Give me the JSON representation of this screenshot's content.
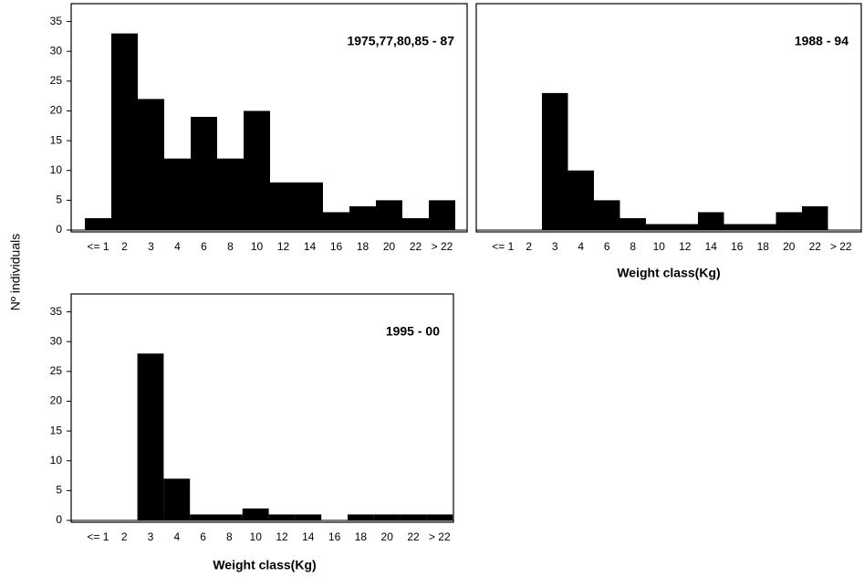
{
  "ylabel": "Nº individuals",
  "chart_data": [
    {
      "type": "bar",
      "title": "1975,77,80,85 - 87",
      "categories": [
        "<= 1",
        "2",
        "3",
        "4",
        "6",
        "8",
        "10",
        "12",
        "14",
        "16",
        "18",
        "20",
        "22",
        "> 22"
      ],
      "values": [
        2,
        33,
        22,
        12,
        19,
        12,
        20,
        8,
        8,
        3,
        4,
        5,
        2,
        5
      ],
      "color": "#000000",
      "ylim": [
        0,
        38
      ],
      "yticks": [
        0,
        5,
        10,
        15,
        20,
        25,
        30,
        35
      ]
    },
    {
      "type": "bar",
      "title": "1988 - 94",
      "xlabel": "Weight class(Kg)",
      "categories": [
        "<= 1",
        "2",
        "3",
        "4",
        "6",
        "8",
        "10",
        "12",
        "14",
        "16",
        "18",
        "20",
        "22",
        "> 22"
      ],
      "values": [
        0,
        0,
        23,
        10,
        5,
        2,
        1,
        1,
        3,
        1,
        1,
        3,
        4,
        0
      ],
      "color": "#000000",
      "ylim": [
        0,
        38
      ]
    },
    {
      "type": "bar",
      "title": "1995 - 00",
      "xlabel": "Weight class(Kg)",
      "categories": [
        "<= 1",
        "2",
        "3",
        "4",
        "6",
        "8",
        "10",
        "12",
        "14",
        "16",
        "18",
        "20",
        "22",
        "> 22"
      ],
      "values": [
        0,
        0,
        28,
        7,
        1,
        1,
        2,
        1,
        1,
        0,
        1,
        1,
        1,
        1
      ],
      "color": "#000000",
      "ylim": [
        0,
        38
      ],
      "yticks": [
        0,
        5,
        10,
        15,
        20,
        25,
        30,
        35
      ]
    }
  ]
}
